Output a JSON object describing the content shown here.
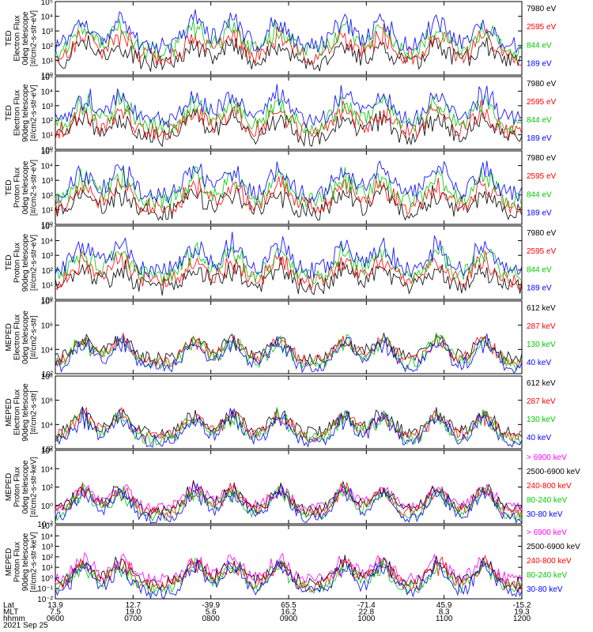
{
  "chart_data": {
    "type": "line",
    "x_axis": {
      "rows": [
        {
          "label": "Lat",
          "values": [
            "13.9",
            "12.7",
            "-39.9",
            "65.5",
            "-71.4",
            "45.9",
            "-15.2"
          ]
        },
        {
          "label": "MLT",
          "values": [
            "7.5",
            "19.0",
            "5.6",
            "16.2",
            "22.8",
            "8.3",
            "19.3"
          ]
        },
        {
          "label": "hhmm",
          "values": [
            "0600",
            "0700",
            "0800",
            "0900",
            "1000",
            "1100",
            "1200"
          ]
        }
      ],
      "date": "2021 Sep 25",
      "time_range_hours": [
        6,
        12
      ]
    },
    "panels": [
      {
        "id": "ted-electron-0",
        "ylabel": [
          "TED",
          "Electron Flux",
          "0deg telescope",
          "[#/cm2-s-str-eV]"
        ],
        "yscale": "log",
        "ylim_exp": [
          0,
          5
        ],
        "yticks": [
          "10⁰",
          "10¹",
          "10²",
          "10³",
          "10⁴",
          "10⁵"
        ],
        "series": [
          {
            "name": "7980 eV",
            "color": "#000000"
          },
          {
            "name": "2595 eV",
            "color": "#ff0000"
          },
          {
            "name": "844 eV",
            "color": "#00c800"
          },
          {
            "name": "189 eV",
            "color": "#0000ff"
          }
        ]
      },
      {
        "id": "ted-electron-90",
        "ylabel": [
          "TED",
          "Electron Flux",
          "90deg telescope",
          "[#/cm2-s-str-eV]"
        ],
        "yscale": "log",
        "ylim_exp": [
          0,
          5
        ],
        "yticks": [
          "10⁰",
          "10¹",
          "10²",
          "10³",
          "10⁴",
          "10⁵"
        ],
        "series": [
          {
            "name": "7980 eV",
            "color": "#000000"
          },
          {
            "name": "2595 eV",
            "color": "#ff0000"
          },
          {
            "name": "844 eV",
            "color": "#00c800"
          },
          {
            "name": "189 eV",
            "color": "#0000ff"
          }
        ]
      },
      {
        "id": "ted-proton-0",
        "ylabel": [
          "TED",
          "Proton Flux",
          "0deg telescope",
          "[#/cm2-s-str-eV]"
        ],
        "yscale": "log",
        "ylim_exp": [
          0,
          5
        ],
        "yticks": [
          "10⁰",
          "10¹",
          "10²",
          "10³",
          "10⁴",
          "10⁵"
        ],
        "series": [
          {
            "name": "7980 eV",
            "color": "#000000"
          },
          {
            "name": "2595 eV",
            "color": "#ff0000"
          },
          {
            "name": "844 eV",
            "color": "#00c800"
          },
          {
            "name": "189 eV",
            "color": "#0000ff"
          }
        ]
      },
      {
        "id": "ted-proton-90",
        "ylabel": [
          "TED",
          "Proton Flux",
          "90deg telescope",
          "[#/cm2-s-str-eV]"
        ],
        "yscale": "log",
        "ylim_exp": [
          0,
          5
        ],
        "yticks": [
          "10⁰",
          "10¹",
          "10²",
          "10³",
          "10⁴",
          "10⁵"
        ],
        "series": [
          {
            "name": "7980 eV",
            "color": "#000000"
          },
          {
            "name": "2595 eV",
            "color": "#ff0000"
          },
          {
            "name": "844 eV",
            "color": "#00c800"
          },
          {
            "name": "189 eV",
            "color": "#0000ff"
          }
        ]
      },
      {
        "id": "meped-electron-0",
        "ylabel": [
          "MEPED",
          "Electron Flux",
          "0deg telescope",
          "[#/cm2-s-str]"
        ],
        "yscale": "log",
        "ylim_exp": [
          1,
          8
        ],
        "yticks": [
          "10²",
          "10⁴",
          "10⁶",
          "10⁸"
        ],
        "series": [
          {
            "name": "612 keV",
            "color": "#000000"
          },
          {
            "name": "287 keV",
            "color": "#ff0000"
          },
          {
            "name": "130 keV",
            "color": "#00c800"
          },
          {
            "name": "40 keV",
            "color": "#0000ff"
          }
        ]
      },
      {
        "id": "meped-electron-90",
        "ylabel": [
          "MEPED",
          "Electron Flux",
          "90deg telescope",
          "[#/cm2-s-str]"
        ],
        "yscale": "log",
        "ylim_exp": [
          1,
          8
        ],
        "yticks": [
          "10²",
          "10⁴",
          "10⁶",
          "10⁸"
        ],
        "series": [
          {
            "name": "612 keV",
            "color": "#000000"
          },
          {
            "name": "287 keV",
            "color": "#ff0000"
          },
          {
            "name": "130 keV",
            "color": "#00c800"
          },
          {
            "name": "40 keV",
            "color": "#0000ff"
          }
        ]
      },
      {
        "id": "meped-proton-0",
        "ylabel": [
          "MEPED",
          "Proton Flux",
          "0deg telescope",
          "[#/cm2-s-str-keV]"
        ],
        "yscale": "log",
        "ylim_exp": [
          -2,
          6
        ],
        "yticks": [
          "10⁻²",
          "10⁰",
          "10²",
          "10⁴",
          "10⁶"
        ],
        "series": [
          {
            "name": "> 6900 keV",
            "color": "#ff00ff"
          },
          {
            "name": "2500-6900 keV",
            "color": "#000000"
          },
          {
            "name": "240-800 keV",
            "color": "#ff0000"
          },
          {
            "name": "80-240 keV",
            "color": "#00c800"
          },
          {
            "name": "30-80 keV",
            "color": "#0000ff"
          }
        ]
      },
      {
        "id": "meped-proton-90",
        "ylabel": [
          "MEPED",
          "Proton Flux",
          "90deg telescope",
          "[#/cm2-s-str-keV]"
        ],
        "yscale": "log",
        "ylim_exp": [
          -2,
          5
        ],
        "yticks": [
          "10⁻²",
          "10⁻¹",
          "10⁰",
          "10¹",
          "10²",
          "10³",
          "10⁴",
          "10⁵"
        ],
        "series": [
          {
            "name": "> 6900 keV",
            "color": "#ff00ff"
          },
          {
            "name": "2500-6900 keV",
            "color": "#000000"
          },
          {
            "name": "240-800 keV",
            "color": "#ff0000"
          },
          {
            "name": "80-240 keV",
            "color": "#00c800"
          },
          {
            "name": "30-80 keV",
            "color": "#0000ff"
          }
        ]
      }
    ]
  }
}
